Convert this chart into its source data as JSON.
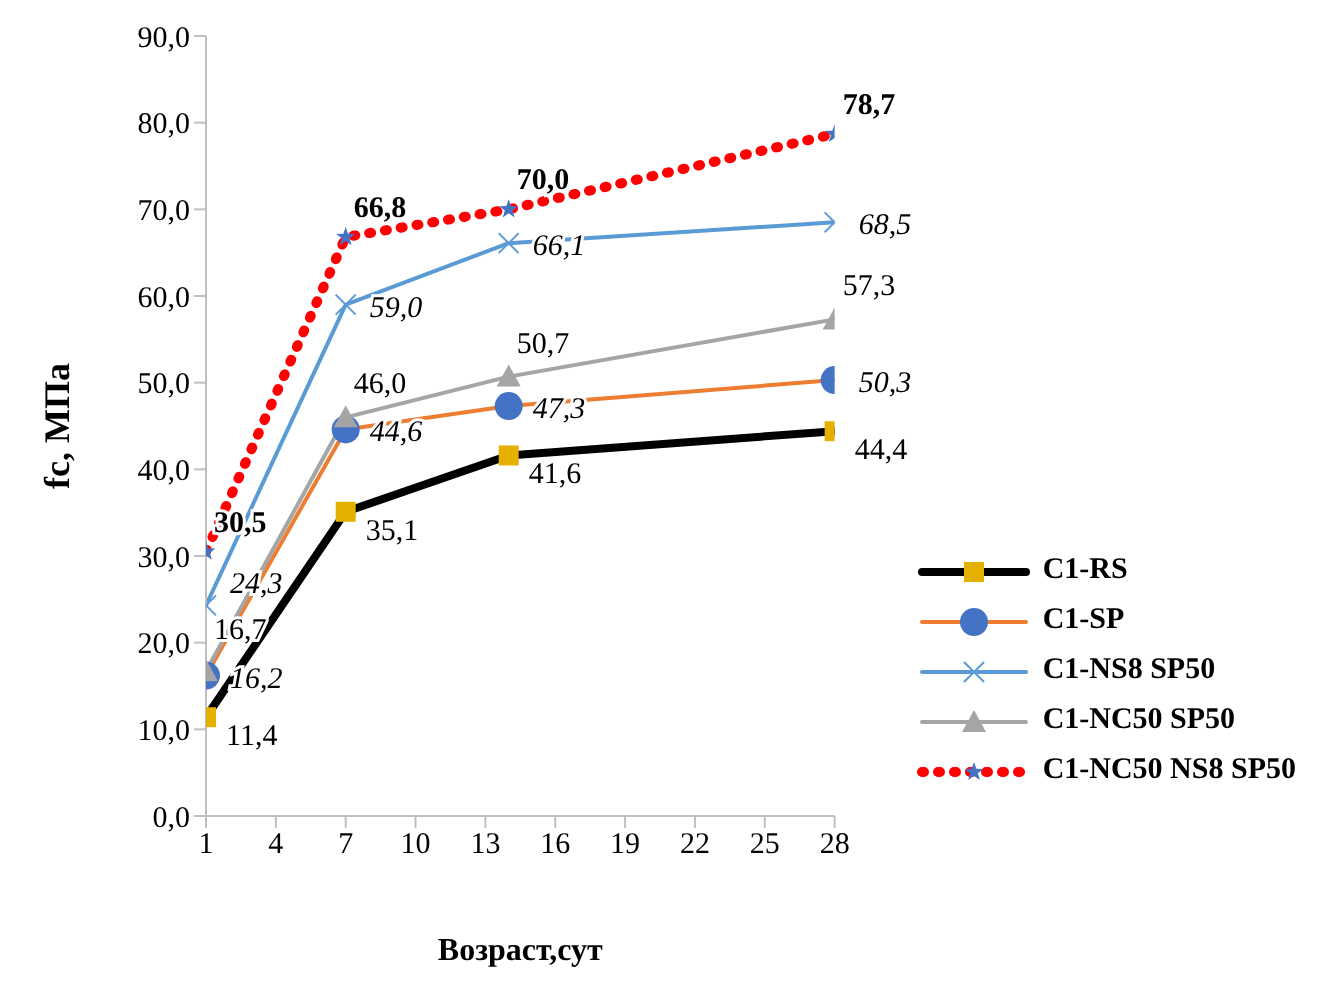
{
  "chart_data": {
    "type": "line",
    "xlabel": "Возраст,сут",
    "ylabel": "fc, МПа",
    "x": [
      1,
      7,
      14,
      28
    ],
    "xlim": [
      1,
      28
    ],
    "xticks": [
      1,
      4,
      7,
      10,
      13,
      16,
      19,
      22,
      25,
      28
    ],
    "ylim": [
      0,
      90
    ],
    "yticks": [
      {
        "value": 0,
        "label": "0,0"
      },
      {
        "value": 10,
        "label": "10,0"
      },
      {
        "value": 20,
        "label": "20,0"
      },
      {
        "value": 30,
        "label": "30,0"
      },
      {
        "value": 40,
        "label": "40,0"
      },
      {
        "value": 50,
        "label": "50,0"
      },
      {
        "value": 60,
        "label": "60,0"
      },
      {
        "value": 70,
        "label": "70,0"
      },
      {
        "value": 80,
        "label": "80,0"
      },
      {
        "value": 90,
        "label": "90,0"
      }
    ],
    "grid": false,
    "legend": "right",
    "series": [
      {
        "name": "C1-RS",
        "color": "#000000",
        "values": [
          11.4,
          35.1,
          41.6,
          44.4
        ],
        "value_labels": [
          "11,4",
          "35,1",
          "41,6",
          "44,4"
        ],
        "marker": "square",
        "line_style": "solid"
      },
      {
        "name": "C1-SP",
        "color": "#ed7d31",
        "values": [
          16.2,
          44.6,
          47.3,
          50.3
        ],
        "value_labels": [
          "16,2",
          "44,6",
          "47,3",
          "50,3"
        ],
        "marker": "circle",
        "line_style": "solid"
      },
      {
        "name": "C1-NS8 SP50",
        "color": "#5b9bd5",
        "values": [
          24.3,
          59.0,
          66.1,
          68.5
        ],
        "value_labels": [
          "24,3",
          "59,0",
          "66,1",
          "68,5"
        ],
        "marker": "cross",
        "line_style": "solid"
      },
      {
        "name": "C1-NC50 SP50",
        "color": "#a5a5a5",
        "values": [
          16.7,
          46.0,
          50.7,
          57.3
        ],
        "value_labels": [
          "16,7",
          "46,0",
          "50,7",
          "57,3"
        ],
        "marker": "triangle",
        "line_style": "solid"
      },
      {
        "name": "C1-NC50 NS8 SP50",
        "color": "#ff0000",
        "values": [
          30.5,
          66.8,
          70.0,
          78.7
        ],
        "value_labels": [
          "30,5",
          "66,8",
          "70,0",
          "78,7"
        ],
        "marker": "star",
        "line_style": "dotted"
      }
    ]
  }
}
